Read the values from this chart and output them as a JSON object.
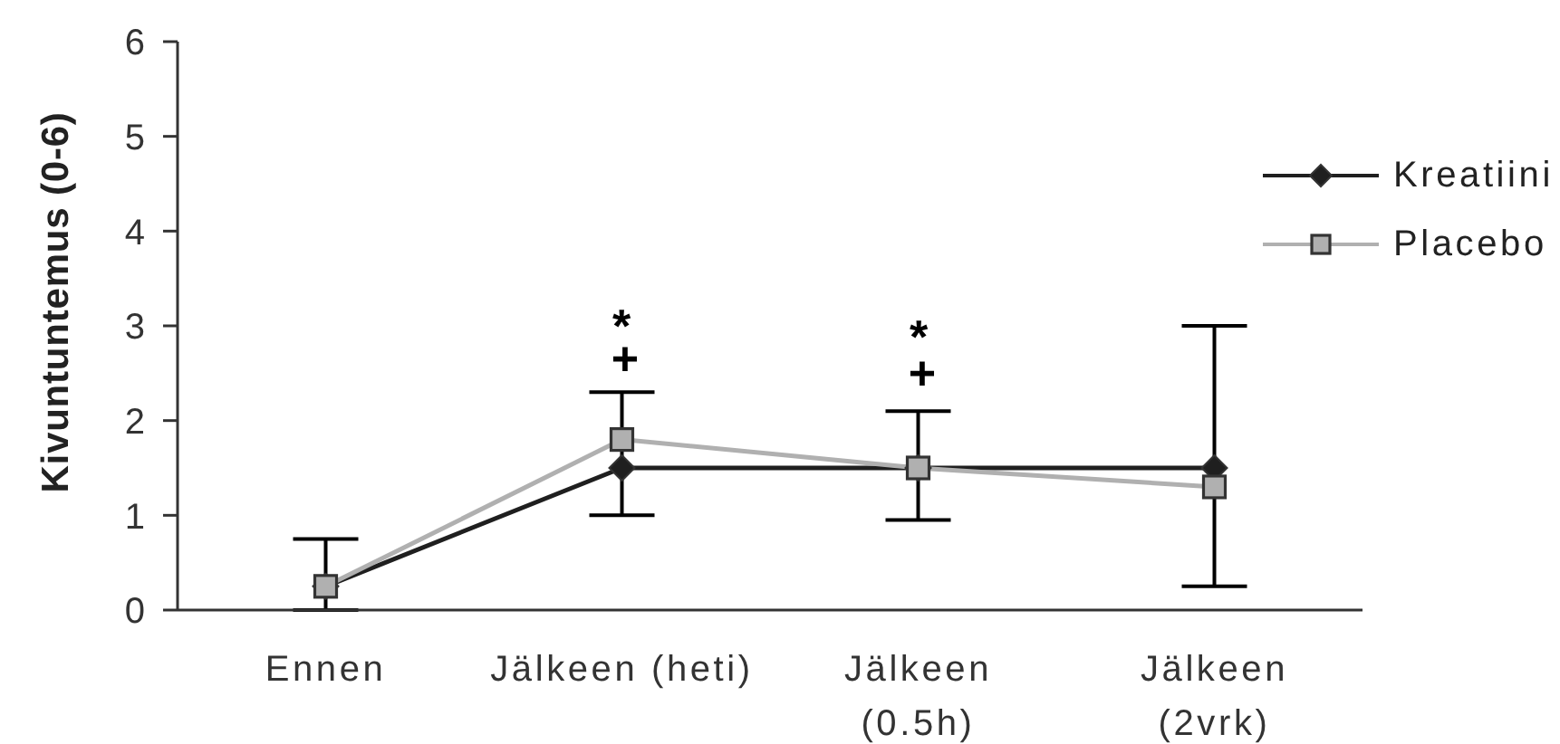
{
  "chart_data": {
    "type": "line",
    "ylabel": "Kivuntuntemus (0-6)",
    "categories": [
      "Ennen",
      "Jälkeen (heti)",
      "Jälkeen\n(0.5h)",
      "Jälkeen\n(2vrk)"
    ],
    "series": [
      {
        "name": "Kreatiini",
        "color": "#1f1f1f",
        "marker": "diamond",
        "values": [
          0.25,
          1.5,
          1.5,
          1.5
        ],
        "errors": [
          [
            0,
            0.75
          ],
          [
            1.0,
            2.3
          ],
          [
            0.95,
            2.1
          ],
          [
            0.25,
            3.0
          ]
        ]
      },
      {
        "name": "Placebo",
        "color": "#b0b0b0",
        "marker": "square",
        "values": [
          0.25,
          1.8,
          1.5,
          1.3
        ]
      }
    ],
    "ylim": [
      0,
      6
    ],
    "yticks": [
      0,
      1,
      2,
      3,
      4,
      5,
      6
    ],
    "grid": false,
    "legend": "right",
    "annotations": [
      "*",
      "+",
      "*",
      "+"
    ]
  }
}
